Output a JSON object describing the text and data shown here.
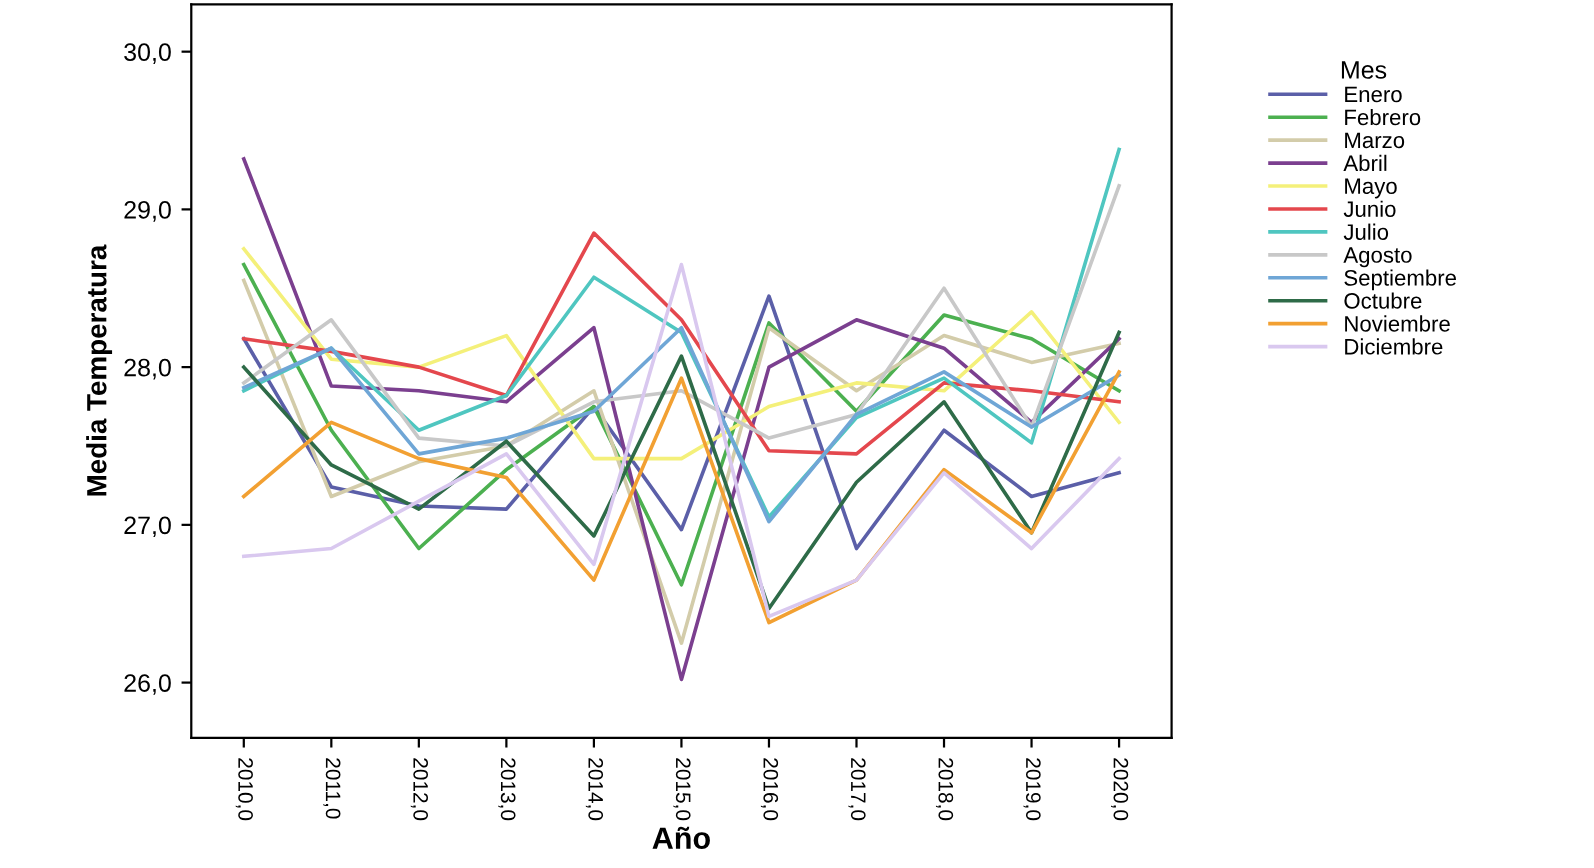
{
  "chart_data": {
    "type": "line",
    "xlabel": "Año",
    "ylabel": "Media Temperatura",
    "legend_title": "Mes",
    "legend": "right",
    "grid": false,
    "categories": [
      "2010,0",
      "2011,0",
      "2012,0",
      "2013,0",
      "2014,0",
      "2015,0",
      "2016,0",
      "2017,0",
      "2018,0",
      "2019,0",
      "2020,0"
    ],
    "ylim": [
      25.65,
      30.3
    ],
    "yticks": [
      {
        "value": 26,
        "label": "26,0"
      },
      {
        "value": 27,
        "label": "27,0"
      },
      {
        "value": 28,
        "label": "28,0"
      },
      {
        "value": 29,
        "label": "29,0"
      },
      {
        "value": 30,
        "label": "30,0"
      }
    ],
    "series": [
      {
        "name": "Enero",
        "color": "#5b5fa8",
        "values": [
          28.18,
          27.24,
          27.12,
          27.1,
          27.75,
          26.97,
          28.45,
          26.85,
          27.6,
          27.18,
          27.33
        ]
      },
      {
        "name": "Febrero",
        "color": "#4cb050",
        "values": [
          28.65,
          27.6,
          26.85,
          27.35,
          27.75,
          26.62,
          28.28,
          27.72,
          28.33,
          28.18,
          27.85
        ]
      },
      {
        "name": "Marzo",
        "color": "#d3ccaa",
        "values": [
          28.55,
          27.18,
          27.4,
          27.5,
          27.85,
          26.25,
          28.25,
          27.85,
          28.2,
          28.03,
          28.15
        ]
      },
      {
        "name": "Abril",
        "color": "#7b3f8f",
        "values": [
          29.32,
          27.88,
          27.85,
          27.78,
          28.25,
          26.02,
          28.0,
          28.3,
          28.12,
          27.65,
          28.18
        ]
      },
      {
        "name": "Mayo",
        "color": "#f4f07a",
        "values": [
          28.75,
          28.05,
          28.0,
          28.2,
          27.42,
          27.42,
          27.75,
          27.9,
          27.85,
          28.35,
          27.65
        ]
      },
      {
        "name": "Junio",
        "color": "#e4474d",
        "values": [
          28.18,
          28.1,
          28.0,
          27.82,
          28.85,
          28.3,
          27.47,
          27.45,
          27.9,
          27.85,
          27.78
        ]
      },
      {
        "name": "Julio",
        "color": "#4fc6c0",
        "values": [
          27.85,
          28.12,
          27.6,
          27.82,
          28.57,
          28.22,
          27.05,
          27.68,
          27.93,
          27.52,
          29.38
        ]
      },
      {
        "name": "Agosto",
        "color": "#c8c8c8",
        "values": [
          27.9,
          28.3,
          27.55,
          27.5,
          27.78,
          27.85,
          27.55,
          27.7,
          28.5,
          27.62,
          29.15
        ]
      },
      {
        "name": "Septiembre",
        "color": "#6fa6d6",
        "values": [
          27.87,
          28.12,
          27.45,
          27.55,
          27.72,
          28.25,
          27.02,
          27.7,
          27.97,
          27.62,
          27.95
        ]
      },
      {
        "name": "Octubre",
        "color": "#2e6b48",
        "values": [
          28.0,
          27.38,
          27.1,
          27.53,
          26.93,
          28.07,
          26.47,
          27.27,
          27.78,
          26.95,
          28.22
        ]
      },
      {
        "name": "Noviembre",
        "color": "#f2a032",
        "values": [
          27.18,
          27.65,
          27.42,
          27.3,
          26.65,
          27.93,
          26.38,
          26.65,
          27.35,
          26.95,
          27.97
        ]
      },
      {
        "name": "Diciembre",
        "color": "#d9c8ef",
        "values": [
          26.8,
          26.85,
          27.15,
          27.45,
          26.75,
          28.65,
          26.42,
          26.65,
          27.33,
          26.85,
          27.42
        ]
      }
    ]
  }
}
